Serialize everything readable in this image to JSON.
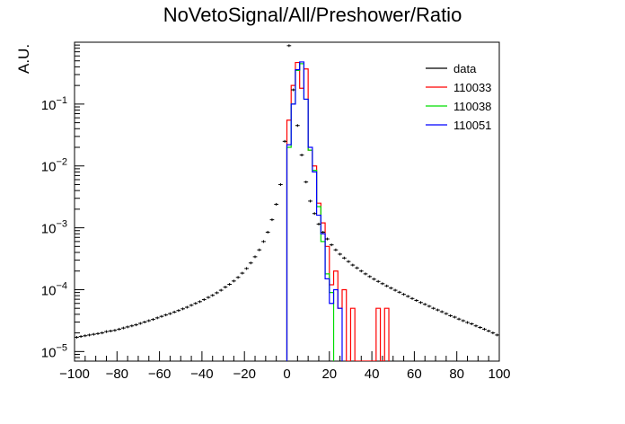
{
  "chart_data": {
    "type": "line",
    "title": "NoVetoSignal/All/Preshower/Ratio",
    "xlabel": "",
    "ylabel": "A.U.",
    "xlim": [
      -100,
      100
    ],
    "ylim": [
      7e-06,
      1
    ],
    "yscale": "log",
    "xticks": [
      -100,
      -80,
      -60,
      -40,
      -20,
      0,
      20,
      40,
      60,
      80,
      100
    ],
    "yticks": [
      {
        "value": 1e-05,
        "mantissa": "10",
        "exp": "−5"
      },
      {
        "value": 0.0001,
        "mantissa": "10",
        "exp": "−4"
      },
      {
        "value": 0.001,
        "mantissa": "10",
        "exp": "−3"
      },
      {
        "value": 0.01,
        "mantissa": "10",
        "exp": "−2"
      },
      {
        "value": 0.1,
        "mantissa": "10",
        "exp": "−1"
      }
    ],
    "legend_position": "top-right",
    "bin_width": 2,
    "series": [
      {
        "name": "data",
        "color": "#000000",
        "style": "errorbar",
        "points": [
          [
            -99,
            1.7e-05
          ],
          [
            -97,
            1.75e-05
          ],
          [
            -95,
            1.8e-05
          ],
          [
            -93,
            1.85e-05
          ],
          [
            -91,
            1.9e-05
          ],
          [
            -89,
            1.95e-05
          ],
          [
            -87,
            2e-05
          ],
          [
            -85,
            2.1e-05
          ],
          [
            -83,
            2.15e-05
          ],
          [
            -81,
            2.2e-05
          ],
          [
            -79,
            2.3e-05
          ],
          [
            -77,
            2.4e-05
          ],
          [
            -75,
            2.5e-05
          ],
          [
            -73,
            2.6e-05
          ],
          [
            -71,
            2.7e-05
          ],
          [
            -69,
            2.85e-05
          ],
          [
            -67,
            3e-05
          ],
          [
            -65,
            3.15e-05
          ],
          [
            -63,
            3.3e-05
          ],
          [
            -61,
            3.5e-05
          ],
          [
            -59,
            3.7e-05
          ],
          [
            -57,
            3.9e-05
          ],
          [
            -55,
            4.1e-05
          ],
          [
            -53,
            4.35e-05
          ],
          [
            -51,
            4.6e-05
          ],
          [
            -49,
            4.9e-05
          ],
          [
            -47,
            5.2e-05
          ],
          [
            -45,
            5.6e-05
          ],
          [
            -43,
            6e-05
          ],
          [
            -41,
            6.4e-05
          ],
          [
            -39,
            6.9e-05
          ],
          [
            -37,
            7.5e-05
          ],
          [
            -35,
            8.1e-05
          ],
          [
            -33,
            8.9e-05
          ],
          [
            -31,
            9.8e-05
          ],
          [
            -29,
            0.00011
          ],
          [
            -27,
            0.000122
          ],
          [
            -25,
            0.000138
          ],
          [
            -23,
            0.000158
          ],
          [
            -21,
            0.000185
          ],
          [
            -19,
            0.00022
          ],
          [
            -17,
            0.00027
          ],
          [
            -15,
            0.00034
          ],
          [
            -13,
            0.00044
          ],
          [
            -11,
            0.0006
          ],
          [
            -9,
            0.00085
          ],
          [
            -7,
            0.00135
          ],
          [
            -5,
            0.0024
          ],
          [
            -3,
            0.005
          ],
          [
            -1,
            0.025
          ],
          [
            1,
            0.88
          ],
          [
            3,
            0.17
          ],
          [
            5,
            0.045
          ],
          [
            7,
            0.015
          ],
          [
            9,
            0.0055
          ],
          [
            11,
            0.0027
          ],
          [
            13,
            0.0017
          ],
          [
            15,
            0.00115
          ],
          [
            17,
            0.00085
          ],
          [
            19,
            0.00066
          ],
          [
            21,
            0.00053
          ],
          [
            23,
            0.00044
          ],
          [
            25,
            0.000375
          ],
          [
            27,
            0.000325
          ],
          [
            29,
            0.000285
          ],
          [
            31,
            0.00025
          ],
          [
            33,
            0.000225
          ],
          [
            35,
            0.0002
          ],
          [
            37,
            0.00018
          ],
          [
            39,
            0.000163
          ],
          [
            41,
            0.000148
          ],
          [
            43,
            0.000136
          ],
          [
            45,
            0.000125
          ],
          [
            47,
            0.000115
          ],
          [
            49,
            0.000106
          ],
          [
            51,
            9.8e-05
          ],
          [
            53,
            9.1e-05
          ],
          [
            55,
            8.4e-05
          ],
          [
            57,
            7.8e-05
          ],
          [
            59,
            7.2e-05
          ],
          [
            61,
            6.7e-05
          ],
          [
            63,
            6.2e-05
          ],
          [
            65,
            5.8e-05
          ],
          [
            67,
            5.4e-05
          ],
          [
            69,
            5e-05
          ],
          [
            71,
            4.7e-05
          ],
          [
            73,
            4.4e-05
          ],
          [
            75,
            4.1e-05
          ],
          [
            77,
            3.8e-05
          ],
          [
            79,
            3.6e-05
          ],
          [
            81,
            3.35e-05
          ],
          [
            83,
            3.15e-05
          ],
          [
            85,
            2.95e-05
          ],
          [
            87,
            2.8e-05
          ],
          [
            89,
            2.6e-05
          ],
          [
            91,
            2.45e-05
          ],
          [
            93,
            2.3e-05
          ],
          [
            95,
            2.15e-05
          ],
          [
            97,
            2e-05
          ],
          [
            99,
            1.85e-05
          ]
        ]
      },
      {
        "name": "110033",
        "color": "#ff0000",
        "style": "hist",
        "edges": [
          0,
          2,
          4,
          6,
          8,
          10,
          12,
          14,
          16,
          18,
          20,
          22,
          24,
          26,
          28,
          30,
          32,
          34,
          36,
          38,
          40,
          42,
          44,
          46,
          48
        ],
        "values": [
          0.055,
          0.2,
          0.47,
          0.18,
          0.37,
          0.018,
          0.01,
          0.0025,
          0.0012,
          0.0005,
          0.00012,
          0.0002,
          5e-05,
          0.0001,
          0,
          5e-05,
          0,
          0,
          0,
          0,
          0,
          5e-05,
          0,
          5e-05
        ]
      },
      {
        "name": "110038",
        "color": "#00dd00",
        "style": "hist",
        "edges": [
          0,
          2,
          4,
          6,
          8,
          10,
          12,
          14,
          16,
          18,
          20,
          22
        ],
        "values": [
          0.02,
          0.1,
          0.35,
          0.45,
          0.12,
          0.018,
          0.0085,
          0.0022,
          0.0006,
          0.00018,
          9e-05
        ]
      },
      {
        "name": "110051",
        "color": "#0000ff",
        "style": "hist",
        "edges": [
          0,
          2,
          4,
          6,
          8,
          10,
          12,
          14,
          16,
          18,
          20,
          22,
          24,
          26
        ],
        "values": [
          0.022,
          0.1,
          0.36,
          0.48,
          0.12,
          0.02,
          0.008,
          0.0016,
          0.0008,
          0.00015,
          6e-05,
          0.0001,
          5e-05
        ]
      }
    ]
  }
}
